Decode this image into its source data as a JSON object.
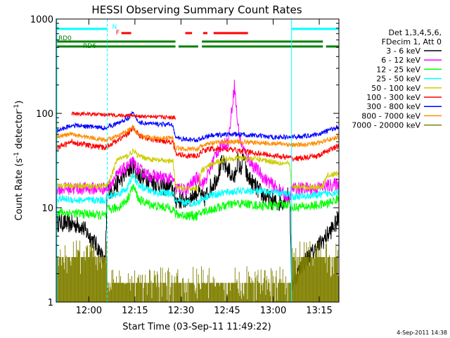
{
  "chart_data": {
    "type": "line",
    "title": "HESSI Observing Summary Count Rates",
    "xlabel": "Start Time (03-Sep-11 11:49:22)",
    "ylabel_prefix": "Count Rate (s",
    "ylabel_sup1": "-1",
    "ylabel_mid": " detector",
    "ylabel_sup2": "-1",
    "ylabel_suffix": ")",
    "x_unit": "minutes from 11:49:22",
    "xlim": [
      0,
      92
    ],
    "ylim": [
      1,
      1000
    ],
    "yscale": "log",
    "x_ticks": [
      {
        "x": 10.6,
        "label": "12:00"
      },
      {
        "x": 25.6,
        "label": "12:15"
      },
      {
        "x": 40.6,
        "label": "12:30"
      },
      {
        "x": 55.6,
        "label": "12:45"
      },
      {
        "x": 70.6,
        "label": "13:00"
      },
      {
        "x": 85.6,
        "label": "13:15"
      }
    ],
    "y_ticks": [
      {
        "y": 1,
        "label": "1"
      },
      {
        "y": 10,
        "label": "10"
      },
      {
        "y": 100,
        "label": "100"
      },
      {
        "y": 1000,
        "label": "1000"
      }
    ],
    "legend_header": [
      "Det 1,3,4,5,6,",
      "FDecim 1, Att 0"
    ],
    "legend_position": "right",
    "timestamp": "4-Sep-2011 14:38",
    "night_boundaries": [
      {
        "x": 0.2,
        "style": "solid"
      },
      {
        "x": 16.6,
        "style": "dashed"
      },
      {
        "x": 76.6,
        "style": "solid"
      },
      {
        "x": 92.0,
        "style": "dashed"
      }
    ],
    "flags": {
      "saa": {
        "color": "#00ffff",
        "segments": [
          [
            0,
            16.6
          ],
          [
            76.6,
            92
          ]
        ]
      },
      "night_label": {
        "text": "N",
        "x": 18.2
      },
      "flare_label": {
        "text": "F",
        "x": 19.4
      },
      "flare": {
        "color": "#ff0000",
        "segments": [
          [
            21.2,
            24.4
          ],
          [
            42.0,
            44.2
          ],
          [
            47.8,
            49.2
          ],
          [
            51.2,
            62.4
          ]
        ]
      },
      "rd0": {
        "text": "RD0",
        "color": "#008000",
        "segments": [
          [
            0,
            38.8
          ],
          [
            47.4,
            86.8
          ]
        ]
      },
      "rd6": {
        "text": "RD6",
        "color": "#008000",
        "segments": [
          [
            0,
            38.8
          ],
          [
            39.8,
            46.2
          ],
          [
            47.4,
            86.8
          ],
          [
            87.8,
            92
          ]
        ]
      }
    },
    "series": [
      {
        "name": "3 - 6 keV",
        "color": "#000000",
        "noise": 0.1,
        "x": [
          0.2,
          8,
          12,
          14,
          16,
          16.6,
          18,
          21,
          23,
          25,
          27,
          30,
          34,
          38,
          38.8,
          40,
          42,
          44,
          46,
          48,
          50,
          52,
          54,
          56,
          58,
          59,
          60,
          61,
          62,
          64,
          66,
          68,
          70,
          72,
          74,
          76,
          76.6,
          80,
          84,
          88,
          92
        ],
        "y": [
          7,
          6.5,
          4.5,
          3.5,
          2.5,
          16,
          15,
          20,
          24,
          28,
          22,
          20,
          17,
          16,
          12,
          12,
          12,
          13,
          15,
          12,
          16,
          20,
          30,
          25,
          20,
          32,
          25,
          35,
          22,
          18,
          15,
          13,
          12,
          11,
          12,
          14,
          1.5,
          2.5,
          3.5,
          5,
          7.5
        ]
      },
      {
        "name": "6 - 12 keV",
        "color": "#ff00ff",
        "noise": 0.07,
        "x": [
          0.2,
          16.6,
          18,
          21,
          23,
          25,
          27,
          30,
          34,
          38,
          38.8,
          40,
          42,
          44,
          46,
          48,
          50,
          52,
          54,
          56,
          57,
          58,
          59,
          60,
          61,
          62,
          64,
          66,
          68,
          70,
          72,
          74,
          76,
          76.6,
          84,
          88,
          92
        ],
        "y": [
          16,
          16,
          19,
          24,
          27,
          30,
          25,
          22,
          21,
          20,
          16,
          16,
          15,
          18,
          21,
          18,
          25,
          38,
          45,
          50,
          100,
          200,
          80,
          50,
          42,
          35,
          28,
          24,
          20,
          18,
          16,
          14,
          12,
          16,
          16,
          17,
          18
        ]
      },
      {
        "name": "12 - 25 keV",
        "color": "#00ff00",
        "noise": 0.05,
        "x": [
          0.2,
          12,
          16,
          16.6,
          20,
          23,
          25,
          27,
          32,
          38,
          38.8,
          42,
          46,
          47.4,
          50,
          55,
          58,
          62,
          66,
          70,
          74,
          76,
          76.6,
          84,
          88,
          92
        ],
        "y": [
          9,
          8.5,
          8.2,
          9.5,
          10,
          12,
          17,
          12,
          10.5,
          9.8,
          8.5,
          8.3,
          8.2,
          9,
          9.5,
          10.5,
          11,
          11,
          10.5,
          10.5,
          10.8,
          11,
          10,
          10.5,
          11,
          12.5
        ]
      },
      {
        "name": "25 - 50 keV",
        "color": "#00ffff",
        "noise": 0.04,
        "x": [
          0.2,
          8,
          16,
          16.6,
          20,
          23,
          25,
          27,
          32,
          38,
          38.8,
          42,
          46,
          47.4,
          50,
          55,
          60,
          65,
          70,
          76,
          76.6,
          84,
          88,
          92
        ],
        "y": [
          12.5,
          12,
          12,
          13,
          14,
          16,
          22,
          17,
          14.5,
          14,
          11.5,
          11.3,
          11.2,
          12.5,
          13.5,
          14.5,
          15,
          15,
          14.5,
          14,
          13,
          13.5,
          14,
          15
        ]
      },
      {
        "name": "50 - 100 keV",
        "color": "#cccc00",
        "noise": 0.03,
        "x": [
          0.2,
          16.6,
          20,
          23,
          25,
          27,
          32,
          38,
          38.8,
          42,
          46,
          47.4,
          50,
          55,
          60,
          65,
          70,
          76,
          76.6,
          84,
          87,
          88,
          92
        ],
        "y": [
          17,
          17,
          33,
          35,
          40,
          35,
          32,
          31,
          16.5,
          16,
          16,
          25,
          28,
          33,
          34,
          33,
          31,
          29,
          16.5,
          16.5,
          17,
          22,
          23
        ]
      },
      {
        "name": "100 - 300 keV",
        "color": "#ff0000",
        "noise": 0.03,
        "x": [
          0.2,
          5,
          10,
          16,
          16.6,
          20,
          23,
          25,
          27,
          32,
          38,
          38.8,
          42,
          46,
          47.4,
          50,
          55,
          60,
          65,
          70,
          76,
          76.6,
          82,
          86,
          88,
          92
        ],
        "y": [
          43,
          50,
          46,
          43,
          45,
          52,
          60,
          70,
          58,
          52,
          50,
          37,
          36,
          35,
          40,
          42,
          42,
          40,
          38,
          36,
          34,
          33,
          34,
          36,
          40,
          45
        ]
      },
      {
        "name": "300 - 800 keV",
        "color": "#0000ff",
        "noise": 0.025,
        "x": [
          0.2,
          5,
          12,
          16,
          16.6,
          20,
          23,
          25,
          27,
          32,
          38,
          38.8,
          42,
          46,
          47.4,
          50,
          55,
          60,
          65,
          70,
          76,
          76.6,
          82,
          86,
          88,
          92
        ],
        "y": [
          65,
          75,
          72,
          70,
          72,
          78,
          88,
          100,
          80,
          77,
          76,
          55,
          53,
          52,
          55,
          58,
          60,
          60,
          58,
          56,
          56,
          56,
          58,
          61,
          65,
          72
        ]
      },
      {
        "name": "800 - 7000 keV",
        "color": "#ff8c00",
        "noise": 0.025,
        "x": [
          0.2,
          5,
          12,
          16,
          16.6,
          20,
          23,
          25,
          27,
          32,
          38,
          38.8,
          42,
          46,
          47.4,
          50,
          55,
          60,
          65,
          70,
          76,
          76.6,
          82,
          86,
          88,
          92
        ],
        "y": [
          57,
          60,
          55,
          52,
          53,
          57,
          65,
          72,
          58,
          55,
          55,
          43,
          42,
          42,
          45,
          48,
          50,
          50,
          49,
          48,
          47,
          46,
          47,
          49,
          52,
          56
        ]
      },
      {
        "name": "7000 - 20000 keV",
        "color": "#808000",
        "noise": 0.0,
        "kind": "step",
        "x": [
          0.2,
          16.6,
          16.6,
          76.6,
          76.6,
          92
        ],
        "y": [
          3,
          3,
          1.6,
          1.6,
          3,
          3
        ]
      },
      {
        "name": "",
        "color": "#ff0000",
        "noise": 0.02,
        "kind": "offset",
        "x": [
          5,
          38.8
        ],
        "y": [
          100,
          90
        ]
      }
    ]
  }
}
